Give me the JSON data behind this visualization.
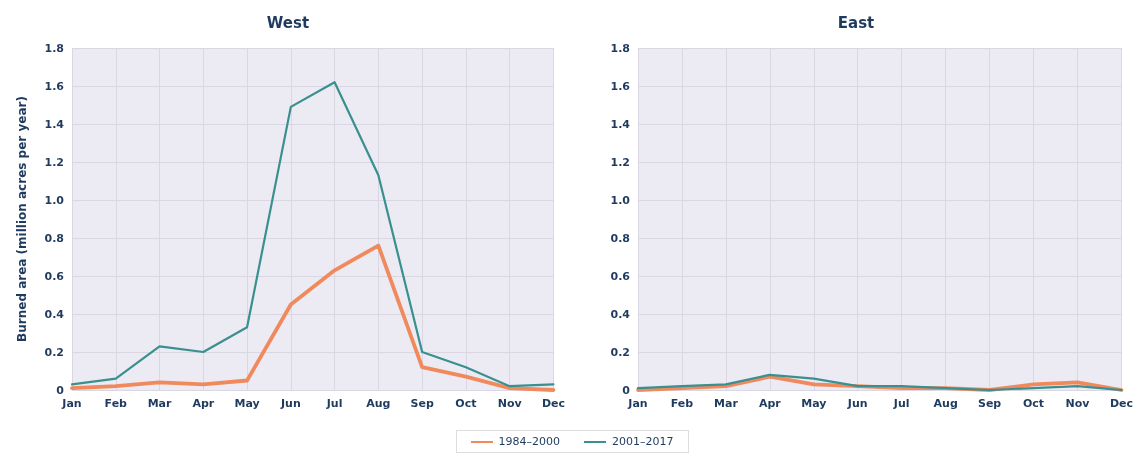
{
  "chart_data": [
    {
      "type": "line",
      "title": "West",
      "ylabel": "Burned area (million acres per year)",
      "categories": [
        "Jan",
        "Feb",
        "Mar",
        "Apr",
        "May",
        "Jun",
        "Jul",
        "Aug",
        "Sep",
        "Oct",
        "Nov",
        "Dec"
      ],
      "series": [
        {
          "name": "1984–2000",
          "color": "#f08a5d",
          "values": [
            0.01,
            0.02,
            0.04,
            0.03,
            0.05,
            0.45,
            0.63,
            0.76,
            0.12,
            0.07,
            0.01,
            0.0
          ]
        },
        {
          "name": "2001–2017",
          "color": "#3a8f8f",
          "values": [
            0.03,
            0.06,
            0.23,
            0.2,
            0.33,
            1.49,
            1.62,
            1.13,
            0.2,
            0.12,
            0.02,
            0.03
          ]
        }
      ],
      "ylim": [
        0,
        1.8
      ],
      "yticks": [
        0,
        0.2,
        0.4,
        0.6,
        0.8,
        {
          "value": 1,
          "label": "1.0"
        },
        1.2,
        1.4,
        1.6,
        1.8
      ],
      "grid": true,
      "marker": "none",
      "legend": "bottom"
    },
    {
      "type": "line",
      "title": "East",
      "categories": [
        "Jan",
        "Feb",
        "Mar",
        "Apr",
        "May",
        "Jun",
        "Jul",
        "Aug",
        "Sep",
        "Oct",
        "Nov",
        "Dec"
      ],
      "series": [
        {
          "name": "1984–2000",
          "color": "#f08a5d",
          "values": [
            0.0,
            0.01,
            0.02,
            0.07,
            0.03,
            0.02,
            0.01,
            0.01,
            0.0,
            0.03,
            0.04,
            0.0
          ]
        },
        {
          "name": "2001–2017",
          "color": "#3a8f8f",
          "values": [
            0.01,
            0.02,
            0.03,
            0.08,
            0.06,
            0.02,
            0.02,
            0.01,
            0.0,
            0.01,
            0.02,
            0.0
          ]
        }
      ],
      "ylim": [
        0,
        1.8
      ],
      "yticks": [
        0,
        0.2,
        0.4,
        0.6,
        0.8,
        {
          "value": 1,
          "label": "1.0"
        },
        1.2,
        1.4,
        1.6,
        1.8
      ],
      "grid": true,
      "marker": "none",
      "legend": "bottom"
    }
  ]
}
